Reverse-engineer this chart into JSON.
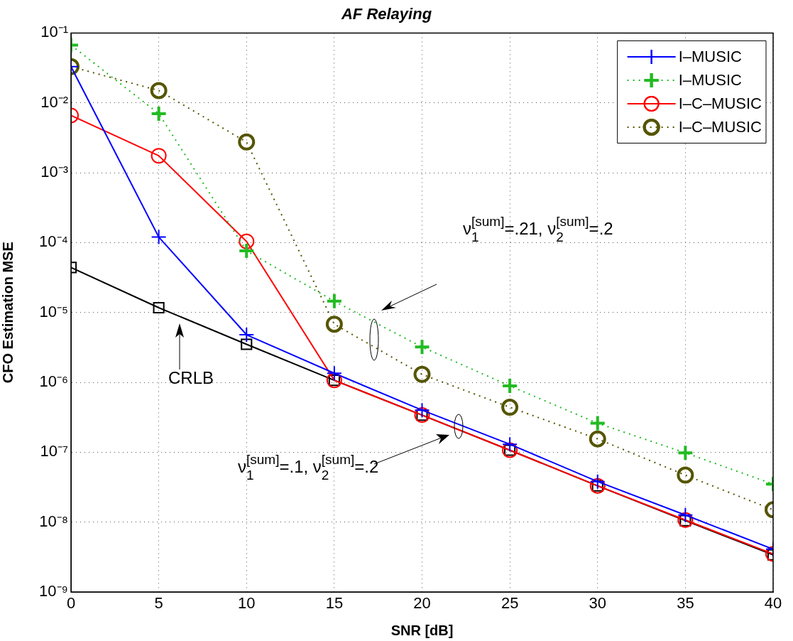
{
  "chart_data": {
    "type": "line",
    "title": "AF Relaying",
    "xlabel": "SNR [dB]",
    "ylabel": "CFO Estimation MSE",
    "x": [
      0,
      5,
      10,
      15,
      20,
      25,
      30,
      35,
      40
    ],
    "series": [
      {
        "name": "I–MUSIC",
        "color": "#0000ff",
        "marker": "cross",
        "line_style": "solid",
        "values": [
          0.033,
          0.00012,
          4.8e-06,
          1.35e-06,
          4e-07,
          1.3e-07,
          3.8e-08,
          1.26e-08,
          4.1e-09
        ]
      },
      {
        "name": "I–MUSIC",
        "color": "#22bb22",
        "marker": "cross",
        "line_style": "dotted",
        "values": [
          0.067,
          0.007,
          7.6e-05,
          1.45e-05,
          3.2e-06,
          8.9e-07,
          2.6e-07,
          9.8e-08,
          3.5e-08
        ]
      },
      {
        "name": "I–C–MUSIC",
        "color": "#ff0000",
        "marker": "circle",
        "line_style": "solid",
        "values": [
          0.0066,
          0.00175,
          0.000104,
          1.07e-06,
          3.4e-07,
          1.07e-07,
          3.3e-08,
          1.07e-08,
          3.5e-09
        ]
      },
      {
        "name": "I–C–MUSIC",
        "color": "#555500",
        "marker": "circle",
        "line_style": "dotted",
        "values": [
          0.033,
          0.015,
          0.00275,
          6.8e-06,
          1.3e-06,
          4.4e-07,
          1.55e-07,
          4.7e-08,
          1.5e-08
        ]
      },
      {
        "color": "#000000",
        "marker": "square",
        "line_style": "solid",
        "values": [
          4.4e-05,
          1.17e-05,
          3.5e-06,
          1.07e-06,
          3.4e-07,
          1.07e-07,
          3.3e-08,
          1.05e-08,
          3.4e-09
        ]
      }
    ],
    "xlim": [
      0,
      40
    ],
    "xticks": [
      0,
      5,
      10,
      15,
      20,
      25,
      30,
      35,
      40
    ],
    "ylim": [
      1e-09,
      0.1
    ],
    "yticks": [
      {
        "value": 1e-09,
        "label": "10⁻⁹"
      },
      {
        "value": 1e-08,
        "label": "10⁻⁸"
      },
      {
        "value": 1e-07,
        "label": "10⁻⁷"
      },
      {
        "value": 1e-06,
        "label": "10⁻⁶"
      },
      {
        "value": 1e-05,
        "label": "10⁻⁵"
      },
      {
        "value": 0.0001,
        "label": "10⁻⁴"
      },
      {
        "value": 0.001,
        "label": "10⁻³"
      },
      {
        "value": 0.01,
        "label": "10⁻²"
      },
      {
        "value": 0.1,
        "label": "10⁻¹"
      }
    ],
    "log": "y",
    "grid": true,
    "legend": "top right",
    "annotations": [
      "CRLB",
      "ν$_{1}$$^{[sum]}$=.21, ν$_{2}$$^{[sum]}$=.2",
      "ν$_{1}$$^{[sum]}$=.1, ν$_{2}$$^{[sum]}$=.2"
    ]
  }
}
